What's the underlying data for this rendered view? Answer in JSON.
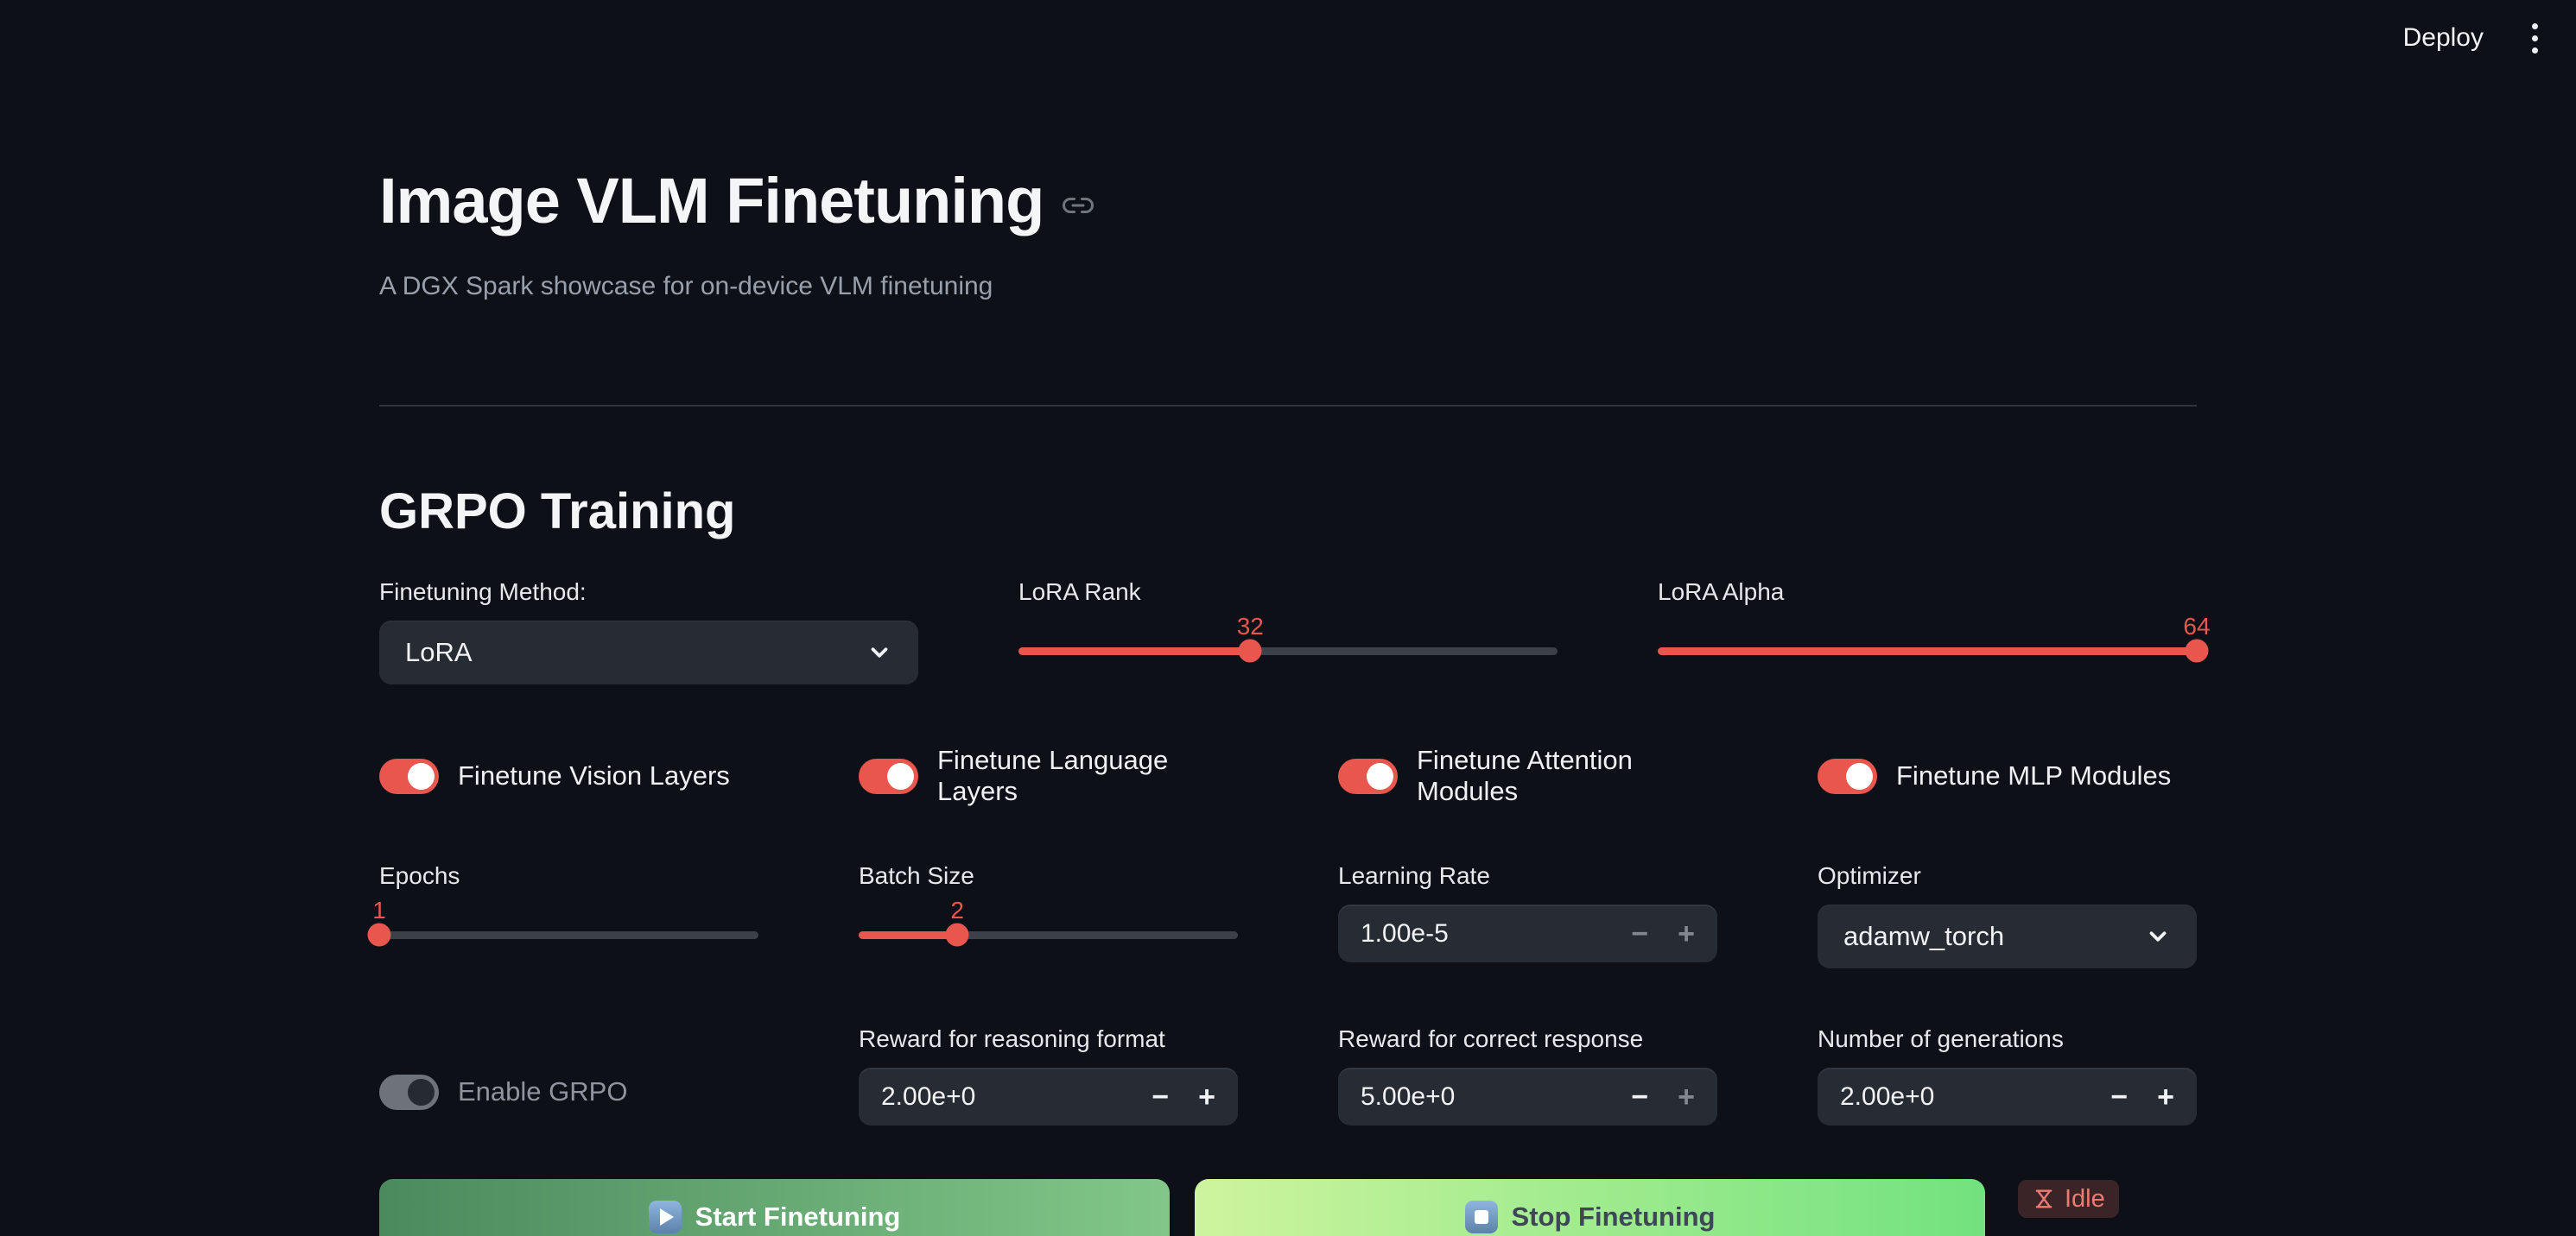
{
  "header": {
    "deploy_label": "Deploy"
  },
  "page": {
    "title": "Image VLM Finetuning",
    "subtitle": "A DGX Spark showcase for on-device VLM finetuning",
    "section_title": "GRPO Training"
  },
  "method": {
    "label": "Finetuning Method:",
    "value": "LoRA"
  },
  "optimizer": {
    "label": "Optimizer",
    "value": "adamw_torch"
  },
  "sliders": {
    "lora_rank": {
      "label": "LoRA Rank",
      "value": "32",
      "percent": 43
    },
    "lora_alpha": {
      "label": "LoRA Alpha",
      "value": "64",
      "percent": 100
    },
    "epochs": {
      "label": "Epochs",
      "value": "1",
      "percent": 0
    },
    "batch_size": {
      "label": "Batch Size",
      "value": "2",
      "percent": 26
    }
  },
  "toggles": {
    "vision": {
      "label": "Finetune Vision Layers",
      "on": true
    },
    "language": {
      "label": "Finetune Language Layers",
      "on": true
    },
    "attention": {
      "label": "Finetune Attention Modules",
      "on": true
    },
    "mlp": {
      "label": "Finetune MLP Modules",
      "on": true
    },
    "grpo": {
      "label": "Enable GRPO",
      "on": false,
      "disabled": true
    }
  },
  "inputs": {
    "learning_rate": {
      "label": "Learning Rate",
      "value": "1.00e-5",
      "minus_class": "dim",
      "plus_class": "dim"
    },
    "reward_format": {
      "label": "Reward for reasoning format",
      "value": "2.00e+0",
      "minus_class": "bright",
      "plus_class": "bright"
    },
    "reward_correct": {
      "label": "Reward for correct response",
      "value": "5.00e+0",
      "minus_class": "bright",
      "plus_class": "dim"
    },
    "num_generations": {
      "label": "Number of generations",
      "value": "2.00e+0",
      "minus_class": "bright",
      "plus_class": "bright"
    }
  },
  "stepper": {
    "minus": "−",
    "plus": "+"
  },
  "actions": {
    "start_label": "Start Finetuning",
    "stop_label": "Stop Finetuning",
    "status_label": "Idle"
  },
  "colors": {
    "accent": "#e8564e",
    "background": "#0d1017",
    "input_background": "#272b33",
    "slider_track": "#3c4049",
    "start_gradient": [
      "#4b8a5d",
      "#82c789"
    ],
    "stop_gradient": [
      "#cdf49e",
      "#72e27e"
    ],
    "status_badge_bg": "#3a2428",
    "status_badge_text": "#ee7b71"
  }
}
